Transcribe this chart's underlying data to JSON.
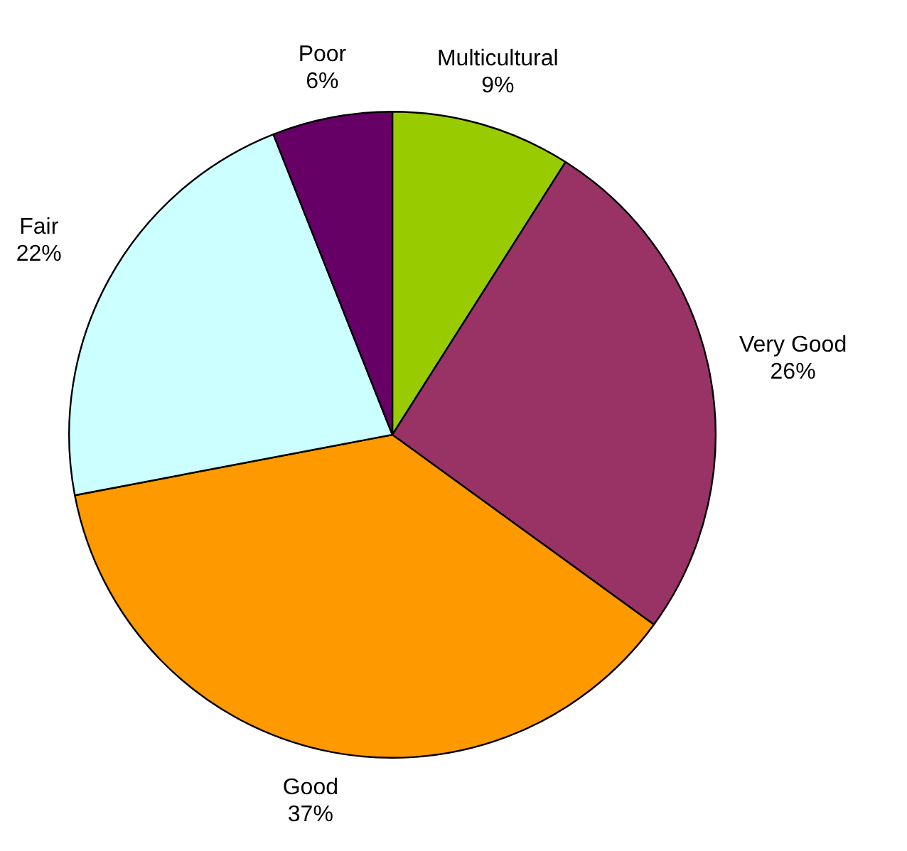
{
  "chart_data": {
    "type": "pie",
    "categories": [
      "Multicultural",
      "Very Good",
      "Good",
      "Fair",
      "Poor"
    ],
    "values": [
      9,
      26,
      37,
      22,
      6
    ],
    "colors": [
      "#99cc00",
      "#993366",
      "#ff9900",
      "#ccffff",
      "#660066"
    ],
    "value_labels": [
      "9%",
      "26%",
      "37%",
      "22%",
      "6%"
    ],
    "legend": false
  }
}
